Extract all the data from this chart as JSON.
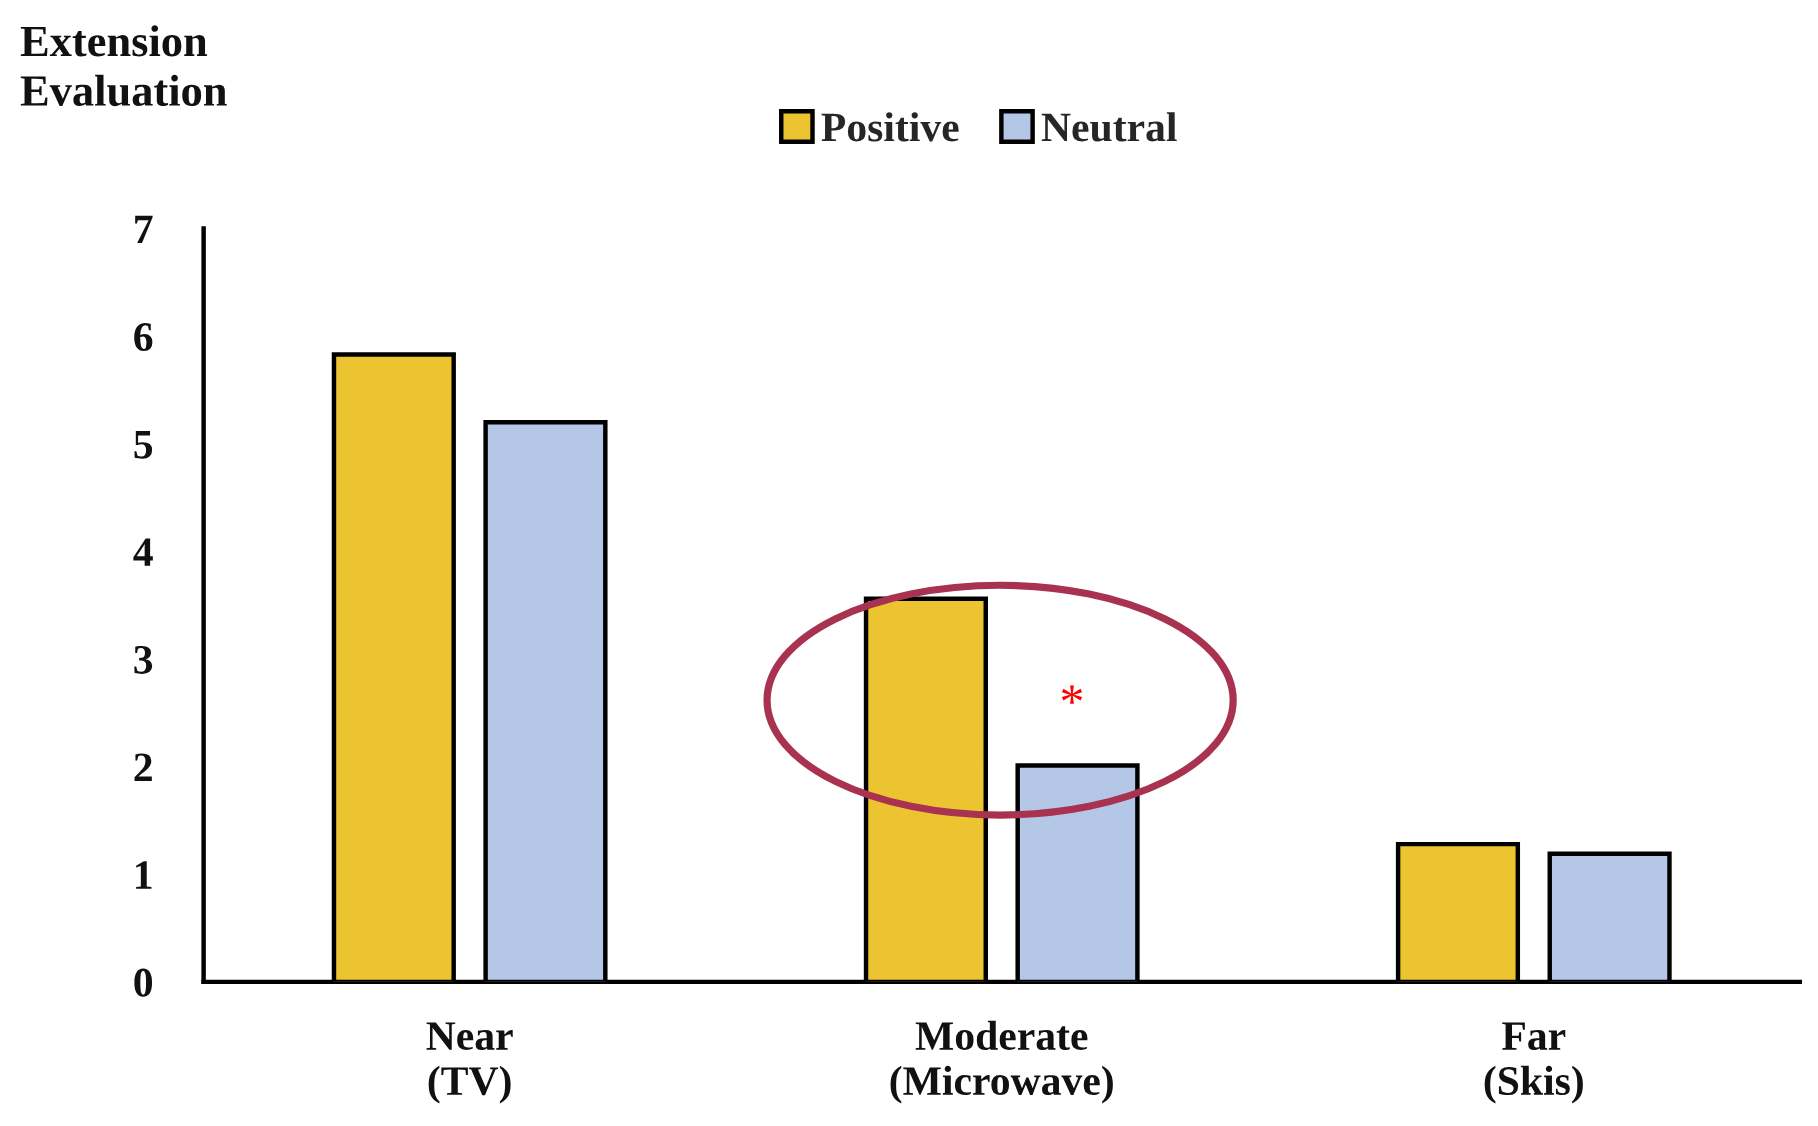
{
  "chart_data": {
    "type": "bar",
    "ylabel": "Extension\nEvaluation",
    "categories": [
      "Near\n(TV)",
      "Moderate\n(Microwave)",
      "Far\n(Skis)"
    ],
    "series": [
      {
        "name": "Positive",
        "color": "#ecc431",
        "values": [
          5.83,
          3.56,
          1.28
        ]
      },
      {
        "name": "Neutral",
        "color": "#b4c7e7",
        "values": [
          5.2,
          2.01,
          1.19
        ]
      }
    ],
    "ylim": [
      0,
      7
    ],
    "yticks": [
      0,
      1,
      2,
      3,
      4,
      5,
      6,
      7
    ],
    "grid": false,
    "legend": "top",
    "annotations": [
      "*"
    ]
  }
}
